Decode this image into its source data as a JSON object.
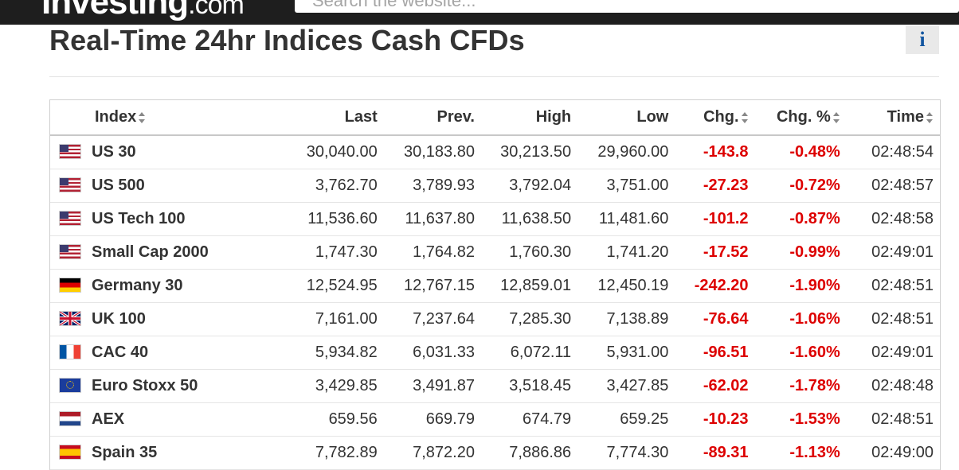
{
  "header": {
    "logo_main": "Investing",
    "logo_suffix": ".com",
    "search_placeholder": "Search the website..."
  },
  "page": {
    "title": "Real-Time 24hr Indices Cash CFDs",
    "info_label": "i"
  },
  "table": {
    "columns": [
      "Index",
      "Last",
      "Prev.",
      "High",
      "Low",
      "Chg.",
      "Chg. %",
      "Time"
    ],
    "rows": [
      {
        "flag": "us",
        "name": "US 30",
        "last": "30,040.00",
        "prev": "30,183.80",
        "high": "30,213.50",
        "low": "29,960.00",
        "chg": "-143.8",
        "chg_pct": "-0.48%",
        "time": "02:48:54"
      },
      {
        "flag": "us",
        "name": "US 500",
        "last": "3,762.70",
        "prev": "3,789.93",
        "high": "3,792.04",
        "low": "3,751.00",
        "chg": "-27.23",
        "chg_pct": "-0.72%",
        "time": "02:48:57"
      },
      {
        "flag": "us",
        "name": "US Tech 100",
        "last": "11,536.60",
        "prev": "11,637.80",
        "high": "11,638.50",
        "low": "11,481.60",
        "chg": "-101.2",
        "chg_pct": "-0.87%",
        "time": "02:48:58"
      },
      {
        "flag": "us",
        "name": "Small Cap 2000",
        "last": "1,747.30",
        "prev": "1,764.82",
        "high": "1,760.30",
        "low": "1,741.20",
        "chg": "-17.52",
        "chg_pct": "-0.99%",
        "time": "02:49:01"
      },
      {
        "flag": "de",
        "name": "Germany 30",
        "last": "12,524.95",
        "prev": "12,767.15",
        "high": "12,859.01",
        "low": "12,450.19",
        "chg": "-242.20",
        "chg_pct": "-1.90%",
        "time": "02:48:51"
      },
      {
        "flag": "gb",
        "name": "UK 100",
        "last": "7,161.00",
        "prev": "7,237.64",
        "high": "7,285.30",
        "low": "7,138.89",
        "chg": "-76.64",
        "chg_pct": "-1.06%",
        "time": "02:48:51"
      },
      {
        "flag": "fr",
        "name": "CAC 40",
        "last": "5,934.82",
        "prev": "6,031.33",
        "high": "6,072.11",
        "low": "5,931.00",
        "chg": "-96.51",
        "chg_pct": "-1.60%",
        "time": "02:49:01"
      },
      {
        "flag": "eu",
        "name": "Euro Stoxx 50",
        "last": "3,429.85",
        "prev": "3,491.87",
        "high": "3,518.45",
        "low": "3,427.85",
        "chg": "-62.02",
        "chg_pct": "-1.78%",
        "time": "02:48:48"
      },
      {
        "flag": "nl",
        "name": "AEX",
        "last": "659.56",
        "prev": "669.79",
        "high": "674.79",
        "low": "659.25",
        "chg": "-10.23",
        "chg_pct": "-1.53%",
        "time": "02:48:51"
      },
      {
        "flag": "es",
        "name": "Spain 35",
        "last": "7,782.89",
        "prev": "7,872.20",
        "high": "7,886.86",
        "low": "7,774.30",
        "chg": "-89.31",
        "chg_pct": "-1.13%",
        "time": "02:49:00"
      }
    ]
  },
  "colors": {
    "negative": "#dd0000",
    "topbar": "#1e1e1e",
    "info_icon": "#1256a0"
  }
}
